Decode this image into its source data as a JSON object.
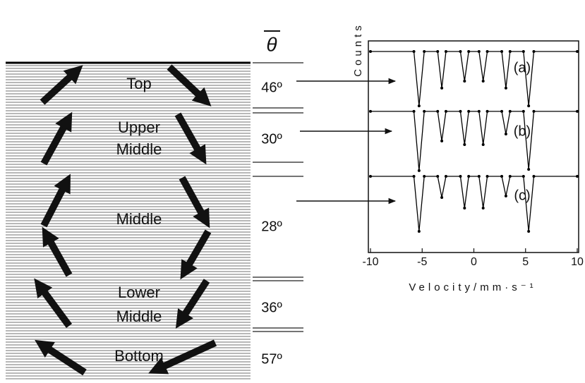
{
  "diagram": {
    "header": "θ",
    "layers": [
      {
        "label": [
          "Top"
        ],
        "angle": "46º"
      },
      {
        "label": [
          "Upper",
          "Middle"
        ],
        "angle": "30º"
      },
      {
        "label": [
          "Middle"
        ],
        "angle": "28º"
      },
      {
        "label": [
          "Lower",
          "Middle"
        ],
        "angle": "36º"
      },
      {
        "label": [
          "Bottom"
        ],
        "angle": "57º"
      }
    ]
  },
  "chart_data": {
    "type": "line",
    "xlabel": "Velocity/mm·s⁻¹",
    "ylabel": "Counts",
    "xlim": [
      -10,
      10
    ],
    "xticks": [
      -10,
      -5,
      0,
      5,
      10
    ],
    "ylim": [
      0,
      100
    ],
    "x": [
      -10,
      -5.8,
      -5.3,
      -4.8,
      -3.5,
      -3.1,
      -2.7,
      -1.3,
      -0.9,
      -0.5,
      0.5,
      0.9,
      1.3,
      2.7,
      3.1,
      3.5,
      4.8,
      5.3,
      5.8,
      10
    ],
    "series": [
      {
        "name": "(a)",
        "color": "#000000",
        "values": [
          95,
          95,
          69.3,
          95,
          95,
          77.7,
          95,
          95,
          81,
          95,
          95,
          81,
          95,
          95,
          77.7,
          95,
          95,
          69.3,
          95,
          95
        ]
      },
      {
        "name": "(b)",
        "color": "#000000",
        "values": [
          66.7,
          66.7,
          38.7,
          66.7,
          66.7,
          52.7,
          66.7,
          66.7,
          51,
          66.7,
          66.7,
          51,
          66.7,
          66.7,
          56,
          66.7,
          66.7,
          39.3,
          66.7,
          66.7
        ]
      },
      {
        "name": "(c)",
        "color": "#000000",
        "values": [
          36,
          36,
          10,
          36,
          36,
          26,
          36,
          36,
          21,
          36,
          36,
          21,
          36,
          36,
          26.7,
          36,
          36,
          10,
          36,
          36
        ]
      }
    ]
  }
}
